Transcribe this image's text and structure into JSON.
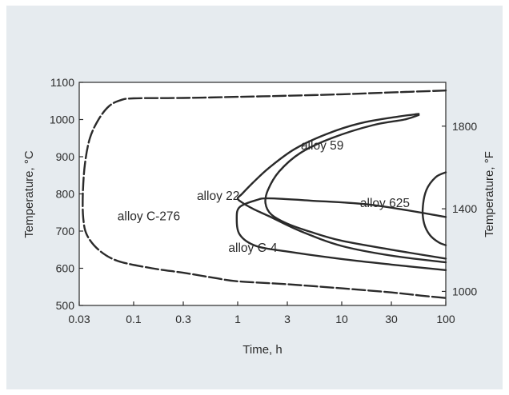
{
  "chart_data": {
    "type": "line",
    "xlabel": "Time, h",
    "ylabel": "Temperature, °C",
    "y2label": "Temperature, °F",
    "x_scale": "log",
    "xlim": [
      0.03,
      100
    ],
    "ylim": [
      500,
      1100
    ],
    "y2lim": [
      932,
      2012
    ],
    "x_ticks": [
      {
        "value": 0.03,
        "label": "0.03"
      },
      {
        "value": 0.1,
        "label": "0.1"
      },
      {
        "value": 0.3,
        "label": "0.3"
      },
      {
        "value": 1,
        "label": "1"
      },
      {
        "value": 3,
        "label": "3"
      },
      {
        "value": 10,
        "label": "10"
      },
      {
        "value": 30,
        "label": "30"
      },
      {
        "value": 100,
        "label": "100"
      }
    ],
    "y_ticks": [
      {
        "value": 500,
        "label": "500"
      },
      {
        "value": 600,
        "label": "600"
      },
      {
        "value": 700,
        "label": "700"
      },
      {
        "value": 800,
        "label": "800"
      },
      {
        "value": 900,
        "label": "900"
      },
      {
        "value": 1000,
        "label": "1000"
      },
      {
        "value": 1100,
        "label": "1100"
      }
    ],
    "y2_ticks": [
      {
        "value": 1000,
        "label": "1000"
      },
      {
        "value": 1400,
        "label": "1400"
      },
      {
        "value": 1800,
        "label": "1800"
      }
    ],
    "grid": false,
    "legend": "none",
    "series": [
      {
        "name": "alloy C-276",
        "style": "dashed",
        "points": [
          [
            100,
            1078
          ],
          [
            30,
            1073
          ],
          [
            10,
            1068
          ],
          [
            3,
            1064
          ],
          [
            1,
            1061
          ],
          [
            0.3,
            1058
          ],
          [
            0.1,
            1057
          ],
          [
            0.075,
            1052
          ],
          [
            0.058,
            1036
          ],
          [
            0.046,
            1000
          ],
          [
            0.038,
            950
          ],
          [
            0.034,
            880
          ],
          [
            0.0325,
            800
          ],
          [
            0.0328,
            735
          ],
          [
            0.0355,
            690
          ],
          [
            0.046,
            650
          ],
          [
            0.07,
            620
          ],
          [
            0.15,
            600
          ],
          [
            0.3,
            588
          ],
          [
            0.6,
            574
          ],
          [
            1,
            565
          ],
          [
            3,
            557
          ],
          [
            10,
            546
          ],
          [
            30,
            535
          ],
          [
            60,
            526
          ],
          [
            100,
            520
          ]
        ]
      },
      {
        "name": "alloy 59",
        "style": "solid-to-dashed",
        "points": [
          [
            55,
            1012
          ],
          [
            40,
            1000
          ],
          [
            20,
            985
          ],
          [
            8,
            950
          ],
          [
            4,
            910
          ],
          [
            2.5,
            860
          ],
          [
            1.95,
            810
          ],
          [
            1.85,
            775
          ],
          [
            2.1,
            745
          ],
          [
            3,
            720
          ],
          [
            5,
            698
          ],
          [
            10,
            674
          ],
          [
            30,
            650
          ],
          [
            100,
            626
          ]
        ]
      },
      {
        "name": "alloy 22",
        "style": "solid-to-dashed",
        "points": [
          [
            100,
            616
          ],
          [
            30,
            634
          ],
          [
            10,
            660
          ],
          [
            4,
            700
          ],
          [
            2,
            740
          ],
          [
            1.4,
            760
          ],
          [
            1.1,
            777
          ],
          [
            1,
            788
          ],
          [
            1.1,
            800
          ],
          [
            1.4,
            830
          ],
          [
            2,
            870
          ],
          [
            3.5,
            920
          ],
          [
            7,
            960
          ],
          [
            15,
            990
          ],
          [
            35,
            1008
          ],
          [
            55,
            1015
          ]
        ]
      },
      {
        "name": "alloy C-4",
        "style": "solid",
        "points": [
          [
            100,
            595
          ],
          [
            30,
            610
          ],
          [
            10,
            625
          ],
          [
            3,
            645
          ],
          [
            1.5,
            660
          ],
          [
            1.05,
            690
          ],
          [
            0.98,
            735
          ],
          [
            1.05,
            765
          ],
          [
            1.5,
            783
          ],
          [
            2,
            788
          ],
          [
            5,
            782
          ],
          [
            20,
            770
          ],
          [
            100,
            738
          ]
        ]
      },
      {
        "name": "alloy 625",
        "style": "solid",
        "points": [
          [
            100,
            858
          ],
          [
            80,
            845
          ],
          [
            65,
            810
          ],
          [
            60,
            760
          ],
          [
            62,
            720
          ],
          [
            70,
            690
          ],
          [
            85,
            670
          ],
          [
            100,
            662
          ]
        ]
      }
    ],
    "annotations": [
      {
        "text": "alloy 59",
        "x": 6.5,
        "y": 930
      },
      {
        "text": "alloy 22",
        "x": 0.65,
        "y": 795
      },
      {
        "text": "alloy 625",
        "x": 26,
        "y": 775
      },
      {
        "text": "alloy C-276",
        "x": 0.14,
        "y": 740
      },
      {
        "text": "alloy C-4",
        "x": 1.4,
        "y": 655
      }
    ]
  }
}
